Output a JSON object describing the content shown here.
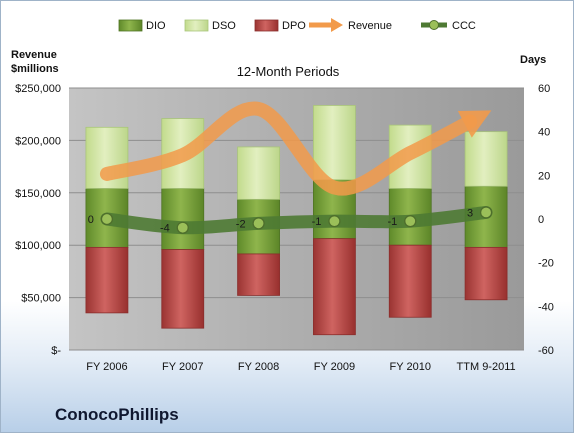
{
  "chart_data": {
    "type": "bar",
    "title": "12-Month Periods",
    "ylabel_left": "Revenue $millions",
    "ylabel_right": "Days",
    "categories": [
      "FY 2006",
      "FY 2007",
      "FY 2008",
      "FY 2009",
      "FY 2010",
      "TTM 9-2011"
    ],
    "left_axis": {
      "min": 0,
      "max": 250000,
      "step": 50000,
      "tick_labels": [
        "$-",
        "$50,000",
        "$100,000",
        "$150,000",
        "$200,000",
        "$250,000"
      ]
    },
    "right_axis": {
      "min": -60,
      "max": 60,
      "step": 20,
      "tick_labels": [
        "-60",
        "-40",
        "-20",
        "0",
        "20",
        "40",
        "60"
      ]
    },
    "series": [
      {
        "name": "DIO",
        "type": "floating-bar",
        "axis": "right",
        "color": "#7aa33a",
        "low": [
          -13,
          -14,
          -16,
          -9,
          -12,
          -13
        ],
        "high": [
          14,
          14,
          9,
          18,
          14,
          15
        ]
      },
      {
        "name": "DSO",
        "type": "floating-bar",
        "axis": "right",
        "color": "#cfe3a0",
        "low": [
          14,
          14,
          9,
          18,
          14,
          15
        ],
        "high": [
          42,
          46,
          33,
          52,
          43,
          40
        ]
      },
      {
        "name": "DPO",
        "type": "floating-bar",
        "axis": "right",
        "color": "#c0504d",
        "low": [
          -43,
          -50,
          -35,
          -53,
          -45,
          -37
        ],
        "high": [
          -13,
          -14,
          -16,
          -9,
          -12,
          -13
        ]
      },
      {
        "name": "Revenue",
        "type": "arrow-line",
        "axis": "left",
        "color": "#f29a4a",
        "values": [
          168000,
          186000,
          230000,
          155000,
          188000,
          226000
        ]
      },
      {
        "name": "CCC",
        "type": "line",
        "axis": "right",
        "color": "#4e7a33",
        "values": [
          0,
          -4,
          -2,
          -1,
          -1,
          3
        ],
        "data_labels": [
          "0",
          "-4",
          "-2",
          "-1",
          "-1",
          "3"
        ]
      }
    ],
    "legend": {
      "position": "top",
      "entries": [
        "DIO",
        "DSO",
        "DPO",
        "Revenue",
        "CCC"
      ]
    },
    "colors": {
      "plot_background": "#ababab",
      "frame_border": "#9fb3c8"
    }
  },
  "company": "ConocoPhillips"
}
